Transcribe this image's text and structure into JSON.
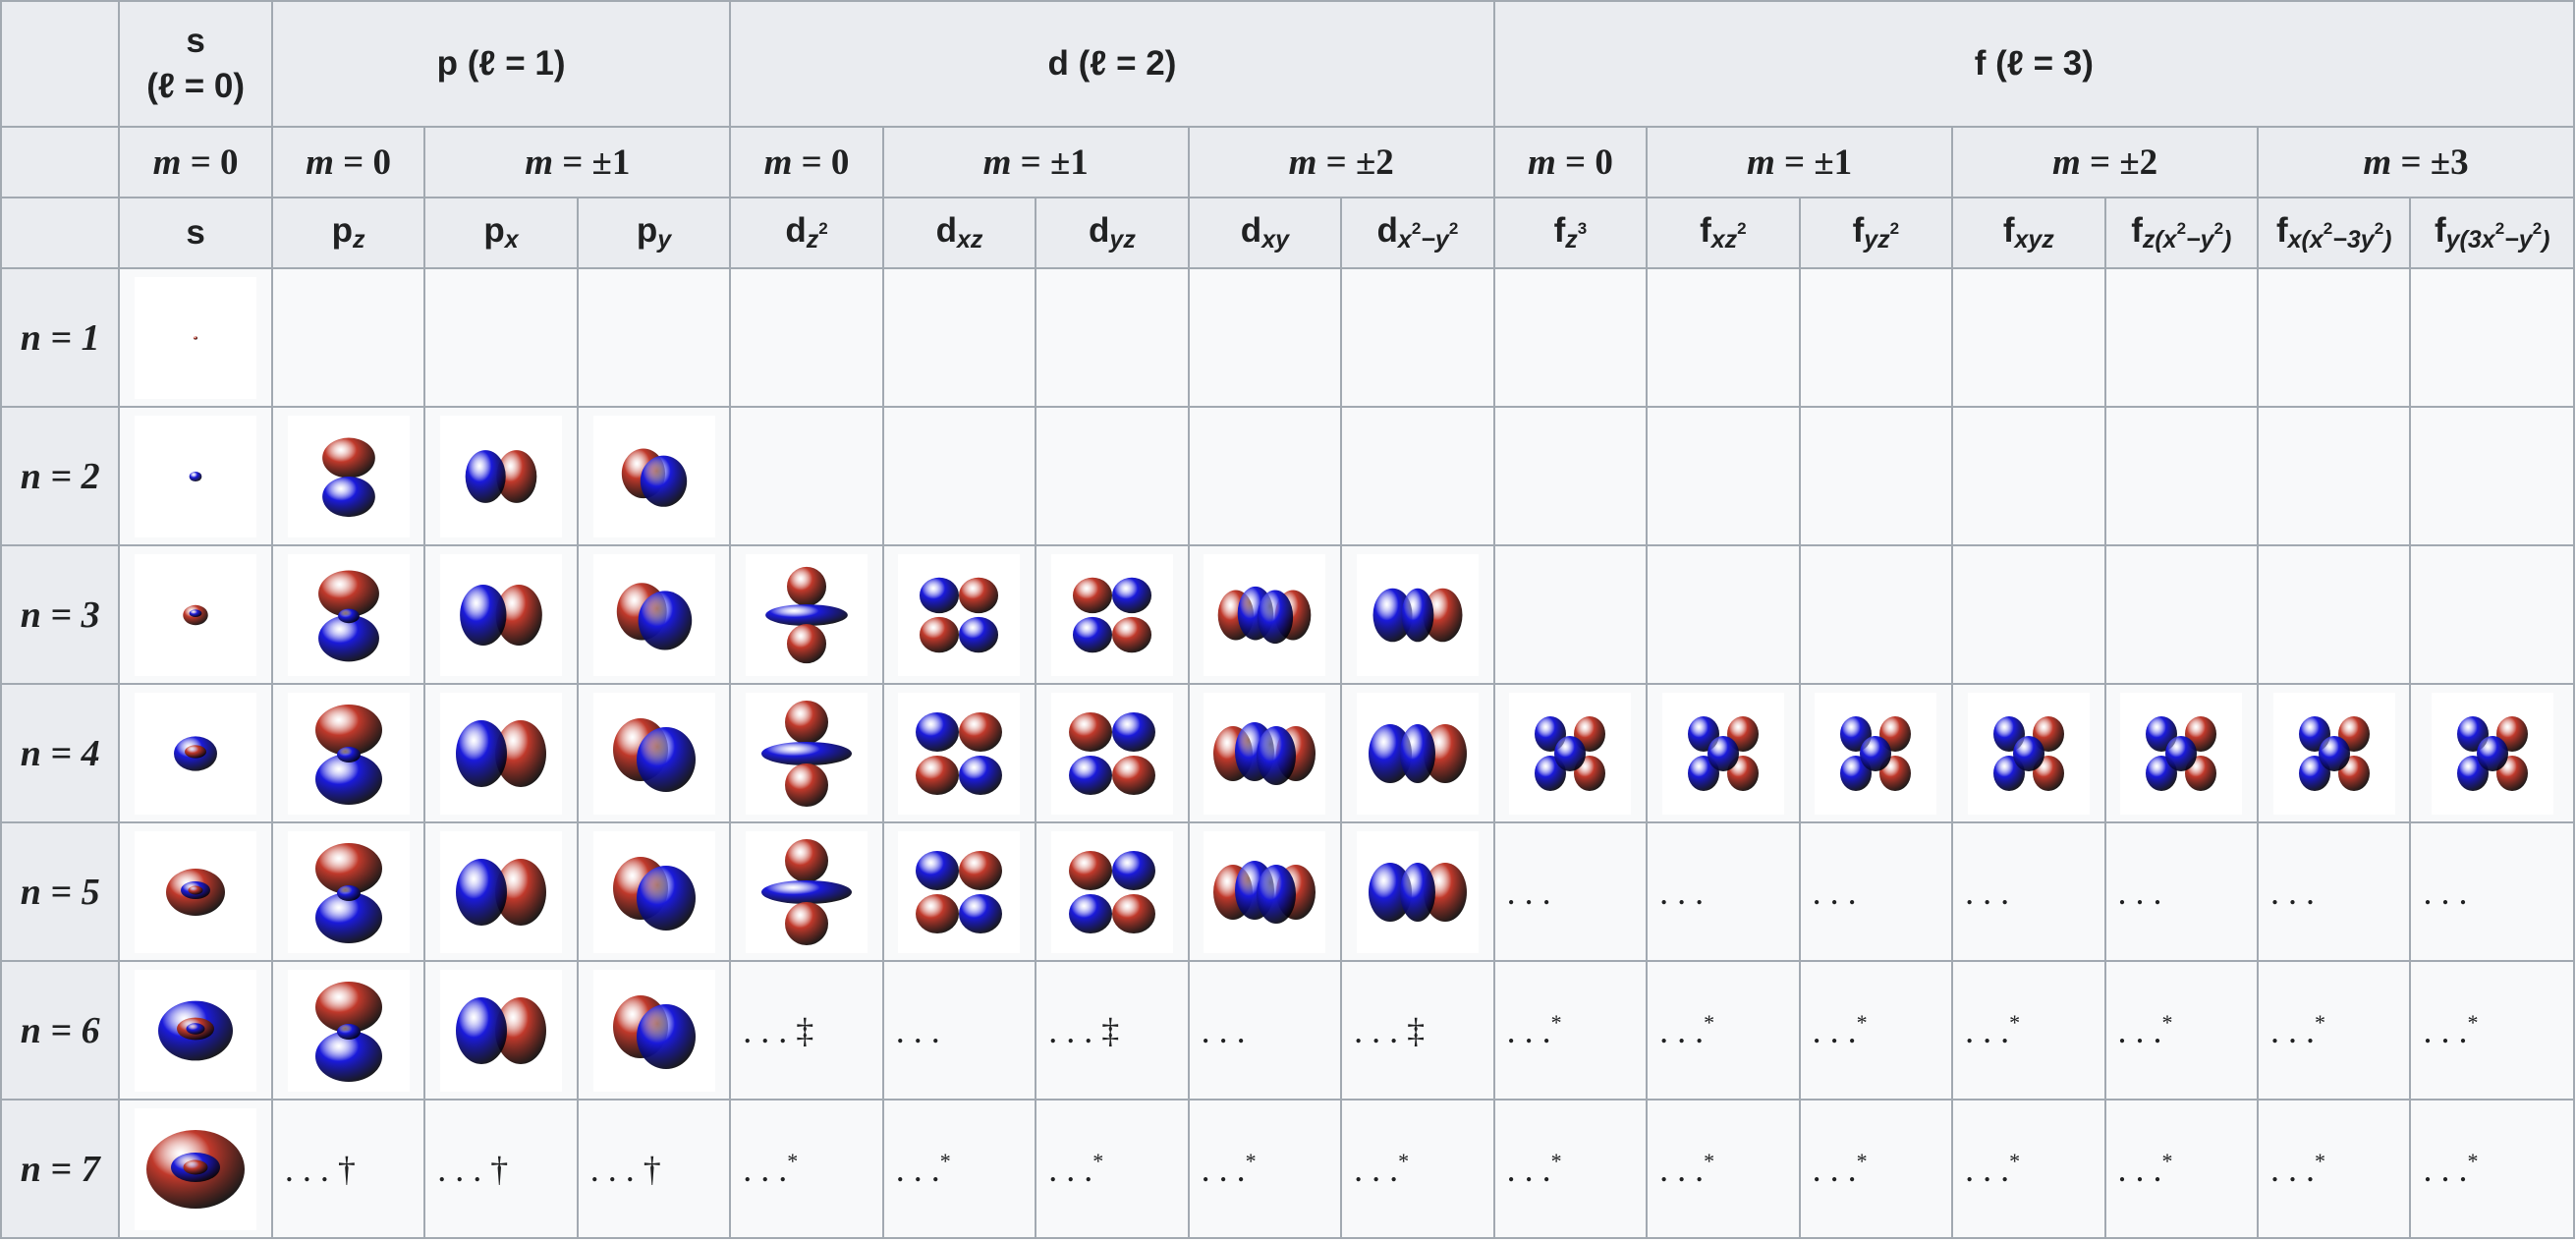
{
  "l_headers": [
    {
      "label": "s",
      "sub": "(ℓ = 0)"
    },
    {
      "label": "p (ℓ = 1)"
    },
    {
      "label": "d (ℓ = 2)"
    },
    {
      "label": "f (ℓ = 3)"
    }
  ],
  "m_headers": [
    "m = 0",
    "m = 0",
    "m = ±1",
    "m = 0",
    "m = ±1",
    "m = ±2",
    "m = 0",
    "m = ±1",
    "m = ±2",
    "m = ±3"
  ],
  "orbital_names": [
    {
      "base": "s",
      "parts": []
    },
    {
      "base": "p",
      "parts": [
        {
          "t": "sub",
          "v": "z"
        }
      ]
    },
    {
      "base": "p",
      "parts": [
        {
          "t": "sub",
          "v": "x"
        }
      ]
    },
    {
      "base": "p",
      "parts": [
        {
          "t": "sub",
          "v": "y"
        }
      ]
    },
    {
      "base": "d",
      "parts": [
        {
          "t": "sub",
          "v": "z"
        },
        {
          "t": "sup",
          "v": "2"
        }
      ]
    },
    {
      "base": "d",
      "parts": [
        {
          "t": "sub",
          "v": "xz"
        }
      ]
    },
    {
      "base": "d",
      "parts": [
        {
          "t": "sub",
          "v": "yz"
        }
      ]
    },
    {
      "base": "d",
      "parts": [
        {
          "t": "sub",
          "v": "xy"
        }
      ]
    },
    {
      "base": "d",
      "parts": [
        {
          "t": "sub",
          "v": "x"
        },
        {
          "t": "sup",
          "v": "2"
        },
        {
          "t": "sub",
          "v": "−y"
        },
        {
          "t": "sup",
          "v": "2"
        }
      ]
    },
    {
      "base": "f",
      "parts": [
        {
          "t": "sub",
          "v": "z"
        },
        {
          "t": "sup",
          "v": "3"
        }
      ]
    },
    {
      "base": "f",
      "parts": [
        {
          "t": "sub",
          "v": "xz"
        },
        {
          "t": "sup",
          "v": "2"
        }
      ]
    },
    {
      "base": "f",
      "parts": [
        {
          "t": "sub",
          "v": "yz"
        },
        {
          "t": "sup",
          "v": "2"
        }
      ]
    },
    {
      "base": "f",
      "parts": [
        {
          "t": "sub",
          "v": "xyz"
        }
      ]
    },
    {
      "base": "f",
      "parts": [
        {
          "t": "sub",
          "v": "z(x"
        },
        {
          "t": "sup",
          "v": "2"
        },
        {
          "t": "sub",
          "v": "−y"
        },
        {
          "t": "sup",
          "v": "2"
        },
        {
          "t": "sub",
          "v": ")"
        }
      ]
    },
    {
      "base": "f",
      "parts": [
        {
          "t": "sub",
          "v": "x(x"
        },
        {
          "t": "sup",
          "v": "2"
        },
        {
          "t": "sub",
          "v": "−3y"
        },
        {
          "t": "sup",
          "v": "2"
        },
        {
          "t": "sub",
          "v": ")"
        }
      ]
    },
    {
      "base": "f",
      "parts": [
        {
          "t": "sub",
          "v": "y(3x"
        },
        {
          "t": "sup",
          "v": "2"
        },
        {
          "t": "sub",
          "v": "−y"
        },
        {
          "t": "sup",
          "v": "2"
        },
        {
          "t": "sub",
          "v": ")"
        }
      ]
    }
  ],
  "colors": {
    "positive_lobe": "#c0392b",
    "negative_lobe": "#1a1adb",
    "header_bg": "#eaecf0",
    "cell_bg": "#f8f9fa",
    "border": "#a2a9b1"
  },
  "rows": [
    {
      "label": "n = 1",
      "cells": [
        "img:s",
        "",
        "",
        "",
        "",
        "",
        "",
        "",
        "",
        "",
        "",
        "",
        "",
        "",
        "",
        ""
      ]
    },
    {
      "label": "n = 2",
      "cells": [
        "img:s",
        "img:pz",
        "img:px",
        "img:py",
        "",
        "",
        "",
        "",
        "",
        "",
        "",
        "",
        "",
        "",
        "",
        ""
      ]
    },
    {
      "label": "n = 3",
      "cells": [
        "img:s",
        "img:pz",
        "img:px",
        "img:py",
        "img:dz2",
        "img:dxz",
        "img:dyz",
        "img:dxy",
        "img:dx2y2",
        "",
        "",
        "",
        "",
        "",
        "",
        ""
      ]
    },
    {
      "label": "n = 4",
      "cells": [
        "img:s",
        "img:pz",
        "img:px",
        "img:py",
        "img:dz2",
        "img:dxz",
        "img:dyz",
        "img:dxy",
        "img:dx2y2",
        "img:fz3",
        "img:fxz2",
        "img:fyz2",
        "img:fxyz",
        "img:fzx2y2",
        "img:fx",
        "img:fy"
      ]
    },
    {
      "label": "n = 5",
      "cells": [
        "img:s",
        "img:pz",
        "img:px",
        "img:py",
        "img:dz2",
        "img:dxz",
        "img:dyz",
        "img:dxy",
        "img:dx2y2",
        "...",
        "...",
        "...",
        "...",
        "...",
        "...",
        "..."
      ]
    },
    {
      "label": "n = 6",
      "cells": [
        "img:s",
        "img:pz",
        "img:px",
        "img:py",
        "...‡",
        "...",
        "...‡",
        "...",
        "...‡",
        "...*",
        "...*",
        "...*",
        "...*",
        "...*",
        "...*",
        "...*"
      ]
    },
    {
      "label": "n = 7",
      "cells": [
        "img:s",
        "...†",
        "...†",
        "...†",
        "...*",
        "...*",
        "...*",
        "...*",
        "...*",
        "...*",
        "...*",
        "...*",
        "...*",
        "...*",
        "...*",
        "...*"
      ]
    }
  ]
}
